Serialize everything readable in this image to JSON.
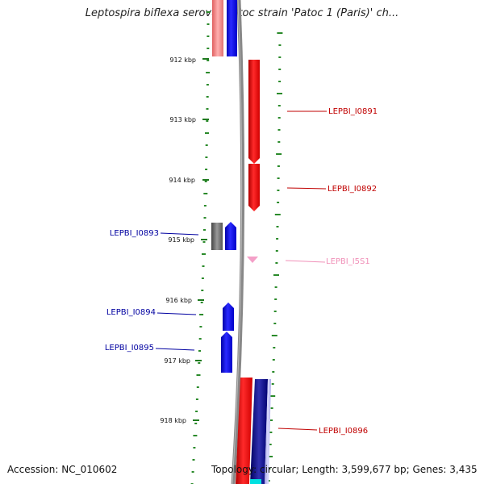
{
  "title": "Leptospira biflexa serovar Patoc strain 'Patoc 1 (Paris)' ch...",
  "ruler": {
    "tick_labels": [
      "912 kbp",
      "913 kbp",
      "914 kbp",
      "915 kbp",
      "916 kbp",
      "917 kbp",
      "918 kbp"
    ]
  },
  "genes": [
    {
      "label": "LEPBI_I0891",
      "strand": "forward",
      "color": "#e00000"
    },
    {
      "label": "LEPBI_I0892",
      "strand": "forward",
      "color": "#e00000"
    },
    {
      "label": "LEPBI_I0893",
      "strand": "reverse",
      "color": "#1010bb"
    },
    {
      "label": "LEPBI_I5S1",
      "strand": "forward",
      "color": "#f4a0c8"
    },
    {
      "label": "LEPBI_I0894",
      "strand": "reverse",
      "color": "#1010bb"
    },
    {
      "label": "LEPBI_I0895",
      "strand": "reverse",
      "color": "#1010bb"
    },
    {
      "label": "LEPBI_I0896",
      "strand": "forward",
      "color": "#e00000"
    }
  ],
  "colors": {
    "forward_gene": "#e00000",
    "reverse_gene": "#1010bb",
    "rrna_gene": "#f4a0c8",
    "pseudo_gene": "#666666",
    "navy_track": "#000080",
    "cyan_track": "#00e0e0",
    "backbone": "#888888",
    "gc_track": "#2a8a2a",
    "forward_label": "#c00000",
    "reverse_label": "#0000a0",
    "rrna_label": "#f090b8"
  },
  "footer": {
    "accession": "Accession: NC_010602",
    "summary": "Topology: circular; Length: 3,599,677 bp; Genes: 3,435"
  }
}
